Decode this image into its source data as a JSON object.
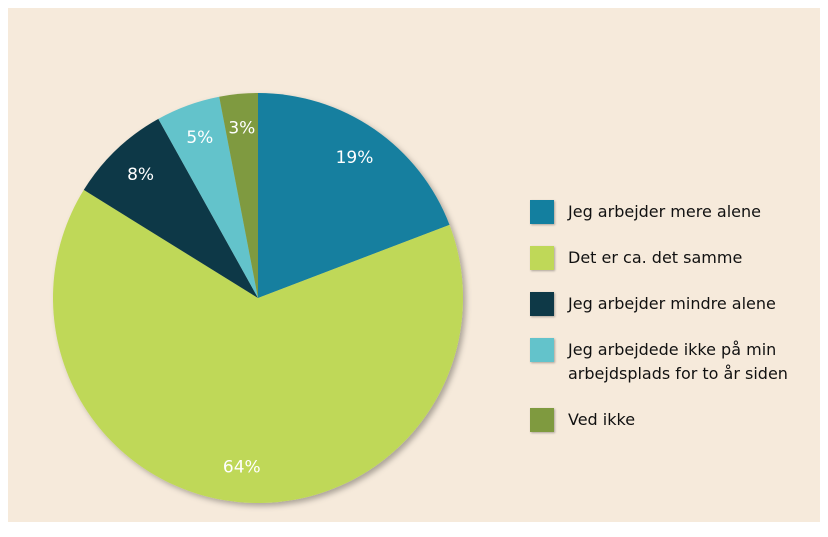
{
  "chart_data": {
    "type": "pie",
    "categories": [
      "Jeg arbejder mere alene",
      "Det er ca. det samme",
      "Jeg arbejder mindre alene",
      "Jeg arbejdede ikke på min arbejdsplads for to år siden",
      "Ved ikke"
    ],
    "values": [
      19,
      64,
      8,
      5,
      3
    ],
    "value_labels": [
      "19%",
      "64%",
      "8%",
      "5%",
      "3%"
    ],
    "colors": [
      "#137f9f",
      "#bfd858",
      "#0e3947",
      "#63c3cb",
      "#7f9a3f"
    ],
    "legend": "right"
  }
}
